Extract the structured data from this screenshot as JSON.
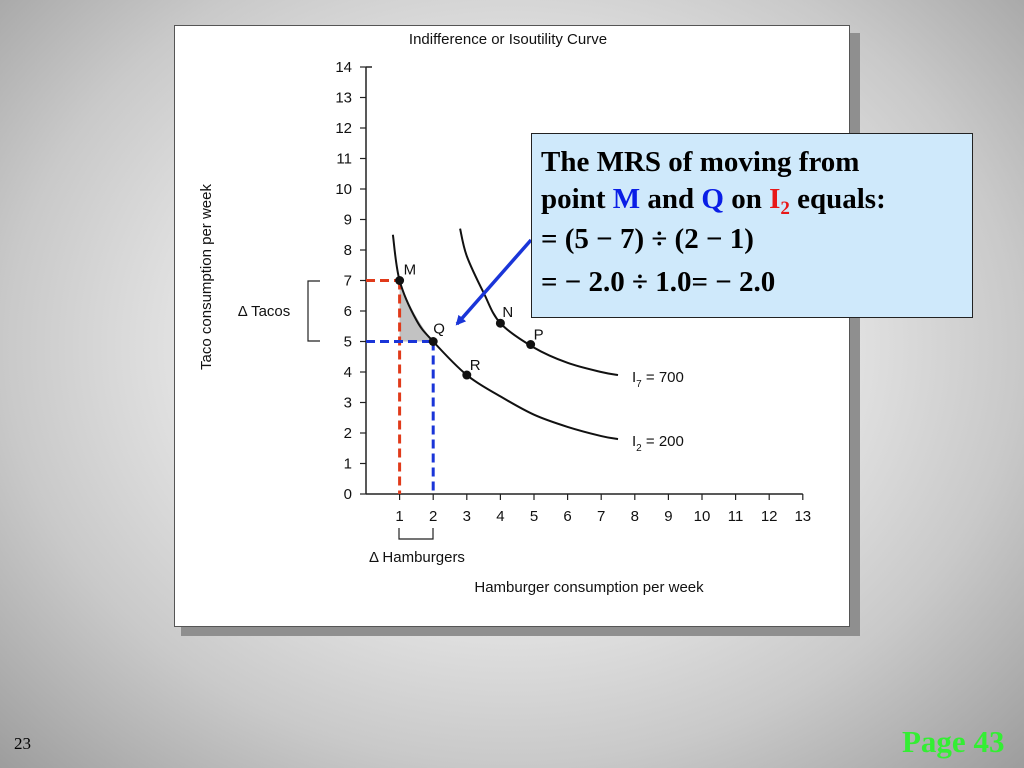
{
  "slide": {
    "number": "23",
    "page_label": "Page 43"
  },
  "callout": {
    "line1": "The MRS of moving from",
    "point_text": "point",
    "point_m": "M",
    "and_text": "and",
    "point_q": "Q",
    "on_text": "on",
    "curve_letter": "I",
    "curve_sub": "2",
    "equals_text": "equals:",
    "line3": "= (5 − 7) ÷ (2 − 1)",
    "line4": "= − 2.0 ÷ 1.0= − 2.0"
  },
  "colors": {
    "arrow": "#1a35d8",
    "guide_red": "#e03a1a",
    "guide_blue": "#1a35d8",
    "callout_bg": "#cfe9fb",
    "page_label": "#33ee33"
  },
  "chart_data": {
    "type": "line",
    "title": "Indifference or Isoutility Curve",
    "xlabel": "Hamburger consumption per week",
    "ylabel": "Taco consumption per week",
    "xlim": [
      0,
      13
    ],
    "ylim": [
      0,
      14
    ],
    "xticks": [
      "1",
      "2",
      "3",
      "4",
      "5",
      "6",
      "7",
      "8",
      "9",
      "10",
      "11",
      "12",
      "13"
    ],
    "yticks": [
      "0",
      "1",
      "2",
      "3",
      "4",
      "5",
      "6",
      "7",
      "8",
      "9",
      "10",
      "11",
      "12",
      "13",
      "14"
    ],
    "grid": false,
    "series": [
      {
        "name": "I2 = 200",
        "label_main": "I",
        "label_sub": "2",
        "label_rest": " = 200",
        "points": [
          [
            0.8,
            8.5
          ],
          [
            1,
            7
          ],
          [
            1.5,
            5.7
          ],
          [
            2,
            5
          ],
          [
            3,
            3.9
          ],
          [
            4,
            3.2
          ],
          [
            5,
            2.6
          ],
          [
            6,
            2.2
          ],
          [
            7,
            1.9
          ],
          [
            7.5,
            1.8
          ]
        ]
      },
      {
        "name": "I7 = 700",
        "label_main": "I",
        "label_sub": "7",
        "label_rest": " = 700",
        "points": [
          [
            2.8,
            8.7
          ],
          [
            3,
            7.8
          ],
          [
            3.5,
            6.6
          ],
          [
            4,
            5.6
          ],
          [
            5,
            4.8
          ],
          [
            6,
            4.3
          ],
          [
            7,
            4.0
          ],
          [
            7.5,
            3.9
          ]
        ]
      }
    ],
    "labeled_points": [
      {
        "label": "M",
        "x": 1,
        "y": 7
      },
      {
        "label": "Q",
        "x": 2,
        "y": 5
      },
      {
        "label": "R",
        "x": 3,
        "y": 3.9
      },
      {
        "label": "N",
        "x": 4,
        "y": 5.6
      },
      {
        "label": "P",
        "x": 4.9,
        "y": 4.9
      }
    ],
    "annotations": {
      "delta_tacos": "Δ Tacos",
      "delta_hamburgers": "Δ Hamburgers"
    }
  }
}
